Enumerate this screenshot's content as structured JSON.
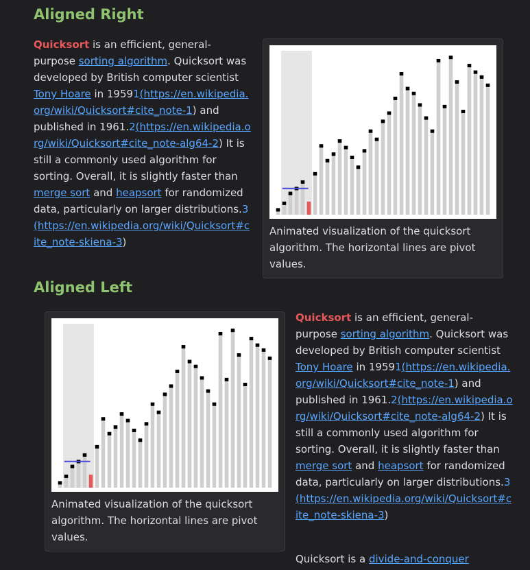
{
  "section_right": {
    "heading": "Aligned Right"
  },
  "section_left": {
    "heading": "Aligned Left"
  },
  "article": {
    "term": "Quicksort",
    "t1": " is an efficient, general-purpose ",
    "link_sorting": "sorting algorithm",
    "t2": ". Quicksort was developed by British computer scientist ",
    "link_hoare": "Tony Hoare",
    "t3": " in 1959",
    "ref1_num": "1",
    "ref1_open": "(",
    "ref1_url": "https://en.wikipedia.org/wiki/Quicksort#cite_note-1",
    "ref1_close": ")",
    "t4": " and published in 1961.",
    "ref2_num": "2",
    "ref2_open": "(",
    "ref2_url": "https://en.wikipedia.org/wiki/Quicksort#cite_note-alg64-2",
    "ref2_close": ")",
    "t5": " It is still a commonly used algorithm for sorting. Overall, it is slightly faster than ",
    "link_merge": "merge sort",
    "t6": " and ",
    "link_heap": "heapsort",
    "t7": " for randomized data, particularly on larger distributions.",
    "ref3_num": "3",
    "ref3_open": "(",
    "ref3_url": "https://en.wikipedia.org/wiki/Quicksort#cite_note-skiena-3",
    "ref3_close": ")"
  },
  "figure": {
    "caption": "Animated visualization of the quicksort algorithm. The horizontal lines are pivot values."
  },
  "tail": {
    "t1": "Quicksort is a ",
    "link_dc": "divide-and-conquer"
  },
  "viz": {
    "bar_color": "#cfcfcf",
    "marker_color": "#000000",
    "pivot_color": "#e25a5a",
    "pivot_line_color": "#4a4adf",
    "shade_color": "#e6e6e6",
    "heights": [
      0.04,
      0.08,
      0.14,
      0.17,
      0.21,
      0.08,
      0.26,
      0.43,
      0.34,
      0.38,
      0.46,
      0.42,
      0.36,
      0.3,
      0.4,
      0.52,
      0.47,
      0.58,
      0.63,
      0.72,
      0.87,
      0.78,
      0.75,
      0.68,
      0.6,
      0.52,
      0.95,
      0.67,
      0.97,
      0.82,
      0.64,
      0.92,
      0.88,
      0.85,
      0.8
    ]
  }
}
